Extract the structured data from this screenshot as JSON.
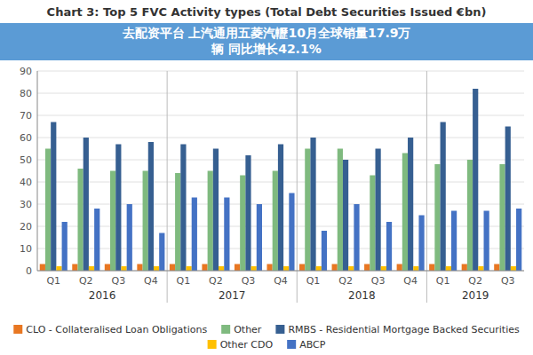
{
  "chart_data": {
    "type": "bar",
    "title": "Chart 3: Top 5 FVC Activity types (Total Debt Securities Issued €bn)",
    "annotation": [
      "去配资平台  上汽通用五菱汽轣10月全球销量17.9万",
      "辆 同比增长42.1%"
    ],
    "categories": [
      "Q1",
      "Q2",
      "Q3",
      "Q4",
      "Q1",
      "Q2",
      "Q3",
      "Q4",
      "Q1",
      "Q2",
      "Q3",
      "Q4",
      "Q1",
      "Q2",
      "Q3"
    ],
    "category_groups": [
      "2016",
      "2016",
      "2016",
      "2016",
      "2017",
      "2017",
      "2017",
      "2017",
      "2018",
      "2018",
      "2018",
      "2018",
      "2019",
      "2019",
      "2019"
    ],
    "series": [
      {
        "name": "CLO - Collateralised Loan Obligations",
        "color": "#e87722",
        "values": [
          3,
          3,
          3,
          3,
          3,
          3,
          3,
          3,
          3,
          3,
          3,
          3,
          3,
          3,
          3
        ]
      },
      {
        "name": "Other",
        "color": "#7fba7f",
        "values": [
          55,
          46,
          45,
          45,
          44,
          45,
          43,
          45,
          55,
          55,
          43,
          53,
          48,
          50,
          48
        ]
      },
      {
        "name": "RMBS - Residential Mortgage Backed Securities",
        "color": "#365f91",
        "values": [
          67,
          60,
          57,
          58,
          57,
          55,
          52,
          57,
          60,
          50,
          55,
          60,
          67,
          82,
          65
        ]
      },
      {
        "name": "Other CDO",
        "color": "#ffc000",
        "values": [
          2,
          2,
          2,
          2,
          2,
          2,
          2,
          2,
          2,
          2,
          2,
          2,
          2,
          2,
          2
        ]
      },
      {
        "name": "ABCP",
        "color": "#4472c4",
        "values": [
          22,
          28,
          30,
          17,
          33,
          33,
          30,
          35,
          18,
          30,
          22,
          25,
          27,
          27,
          28
        ]
      }
    ],
    "ylim": [
      0,
      90
    ],
    "yticks": [
      0,
      10,
      20,
      30,
      40,
      50,
      60,
      70,
      80,
      90
    ],
    "grid": true,
    "legend": "bottom"
  }
}
